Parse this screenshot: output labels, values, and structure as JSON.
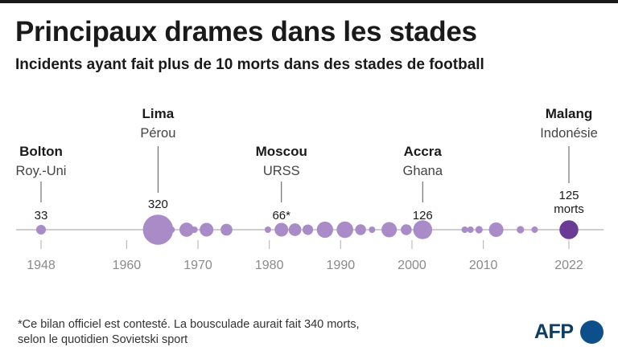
{
  "header": {
    "title": "Principaux drames dans les stades",
    "subtitle": "Incidents ayant fait plus de 10 morts dans des stades de football"
  },
  "chart_data": {
    "type": "scatter",
    "title": "Principaux drames dans les stades",
    "xlabel": "",
    "ylabel": "",
    "xlim": [
      1946,
      2026
    ],
    "x_ticks": [
      {
        "year": 1948,
        "label": "1948"
      },
      {
        "year": 1960,
        "label": "1960"
      },
      {
        "year": 1970,
        "label": "1970"
      },
      {
        "year": 1980,
        "label": "1980"
      },
      {
        "year": 1990,
        "label": "1990"
      },
      {
        "year": 2000,
        "label": "2000"
      },
      {
        "year": 2010,
        "label": "2010"
      },
      {
        "year": 2022,
        "label": "2022"
      }
    ],
    "points": [
      {
        "year": 1948.0,
        "deaths": 33
      },
      {
        "year": 1964.4,
        "deaths": 320
      },
      {
        "year": 1966.3,
        "deaths": 15
      },
      {
        "year": 1968.4,
        "deaths": 71
      },
      {
        "year": 1969.5,
        "deaths": 11
      },
      {
        "year": 1971.2,
        "deaths": 66
      },
      {
        "year": 1974.0,
        "deaths": 49
      },
      {
        "year": 1979.8,
        "deaths": 13
      },
      {
        "year": 1981.7,
        "deaths": 66
      },
      {
        "year": 1983.6,
        "deaths": 56
      },
      {
        "year": 1985.4,
        "deaths": 39
      },
      {
        "year": 1987.8,
        "deaths": 93
      },
      {
        "year": 1990.6,
        "deaths": 96
      },
      {
        "year": 1992.8,
        "deaths": 41
      },
      {
        "year": 1994.4,
        "deaths": 13
      },
      {
        "year": 1996.8,
        "deaths": 82
      },
      {
        "year": 1999.2,
        "deaths": 42
      },
      {
        "year": 2001.5,
        "deaths": 126
      },
      {
        "year": 2007.4,
        "deaths": 12
      },
      {
        "year": 2008.2,
        "deaths": 13
      },
      {
        "year": 2009.4,
        "deaths": 19
      },
      {
        "year": 2011.8,
        "deaths": 74
      },
      {
        "year": 2015.2,
        "deaths": 19
      },
      {
        "year": 2017.2,
        "deaths": 14
      },
      {
        "year": 2022.0,
        "deaths": 125
      }
    ],
    "highlighted_year": 2022,
    "annotations": [
      {
        "city": "Bolton",
        "country": "Roy.-Uni",
        "year": 1948,
        "value_label": "33",
        "level": "low"
      },
      {
        "city": "Lima",
        "country": "Pérou",
        "year": 1964.4,
        "value_label": "320",
        "level": "high"
      },
      {
        "city": "Moscou",
        "country": "URSS",
        "year": 1981.7,
        "value_label": "66*",
        "level": "low"
      },
      {
        "city": "Accra",
        "country": "Ghana",
        "year": 2001.5,
        "value_label": "126",
        "level": "low"
      },
      {
        "city": "Malang",
        "country": "Indonésie",
        "year": 2022,
        "value_label": "125\nmorts",
        "level": "high"
      }
    ]
  },
  "colors": {
    "bubble": "#a98bc7",
    "highlight": "#6b3a94",
    "axis": "#bdbdbd",
    "tick_text": "#8a8a8a",
    "leader": "#555555",
    "logo": "#0d3c64"
  },
  "footnote": {
    "line1": "*Ce bilan officiel est contesté. La bousculade aurait fait 340 morts,",
    "line2": "selon le quotidien Sovietski sport"
  },
  "logo": {
    "text": "AFP",
    "icon": "afp-globe-icon"
  }
}
